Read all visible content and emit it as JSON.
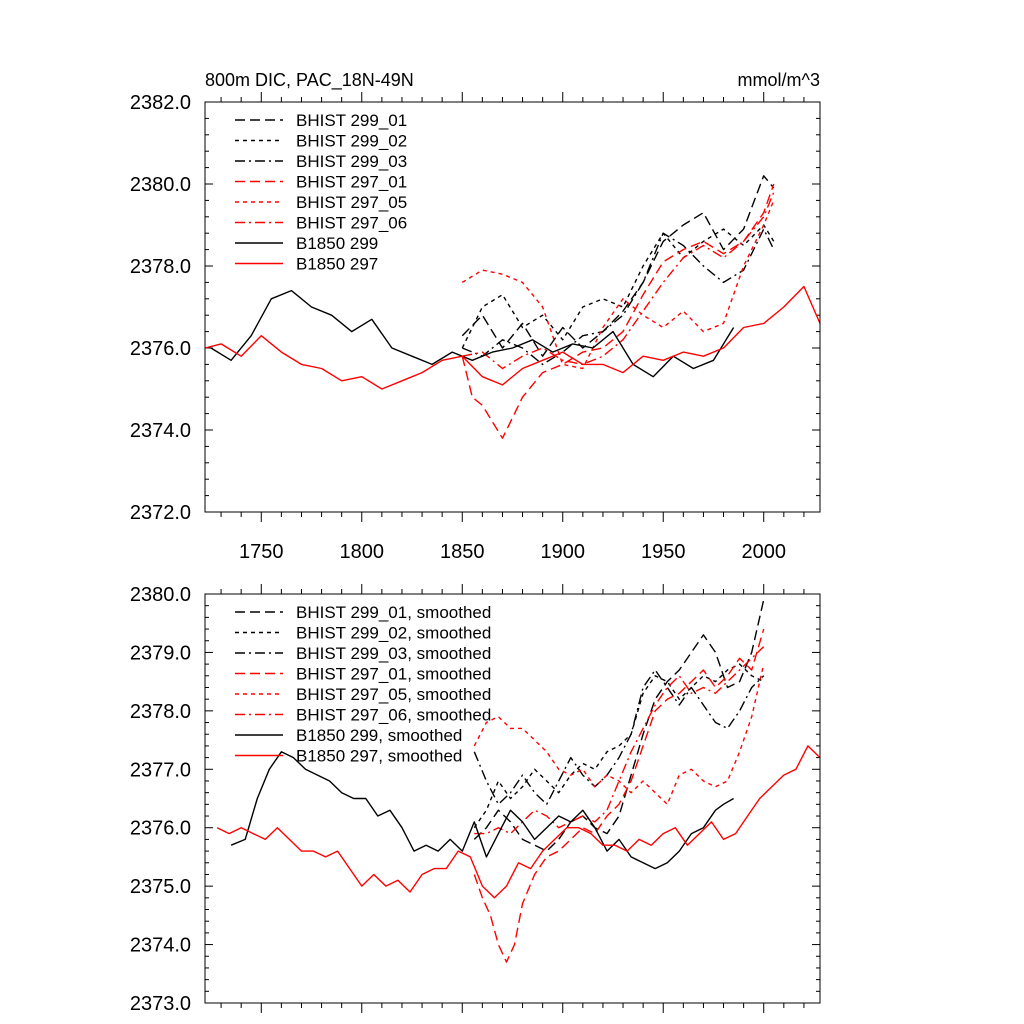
{
  "chart_data": [
    {
      "type": "line",
      "title": "800m DIC, PAC_18N-49N",
      "units": "mmol/m^3",
      "xlim": [
        1722,
        2028
      ],
      "ylim": [
        2372.0,
        2382.0
      ],
      "xticks": [
        1750,
        1800,
        1850,
        1900,
        1950,
        2000
      ],
      "yticks": [
        2372.0,
        2374.0,
        2376.0,
        2378.0,
        2380.0,
        2382.0
      ],
      "ytick_labels": [
        "2372.0",
        "2374.0",
        "2376.0",
        "2378.0",
        "2380.0",
        "2382.0"
      ],
      "xtick_labels": [
        "1750",
        "1800",
        "1850",
        "1900",
        "1950",
        "2000"
      ],
      "legend_position": "top-left",
      "series": [
        {
          "name": "BHIST 299_01",
          "color": "#000000",
          "dash": "long-dash",
          "x": [
            1850,
            1860,
            1870,
            1880,
            1890,
            1900,
            1910,
            1920,
            1930,
            1940,
            1950,
            1960,
            1970,
            1980,
            1990,
            2000,
            2005
          ],
          "y": [
            2376.3,
            2376.8,
            2376.0,
            2376.6,
            2375.8,
            2376.5,
            2376.0,
            2376.4,
            2376.9,
            2377.6,
            2378.6,
            2379.0,
            2379.3,
            2378.4,
            2378.9,
            2380.2,
            2379.9
          ]
        },
        {
          "name": "BHIST 299_02",
          "color": "#000000",
          "dash": "short-dash",
          "x": [
            1850,
            1860,
            1870,
            1880,
            1890,
            1900,
            1910,
            1920,
            1930,
            1940,
            1950,
            1960,
            1970,
            1980,
            1990,
            2000,
            2005
          ],
          "y": [
            2376.0,
            2377.0,
            2377.3,
            2376.5,
            2376.8,
            2376.2,
            2377.0,
            2377.2,
            2377.0,
            2378.0,
            2378.8,
            2378.2,
            2378.6,
            2378.9,
            2378.5,
            2379.0,
            2378.6
          ]
        },
        {
          "name": "BHIST 299_03",
          "color": "#000000",
          "dash": "dash-dot",
          "x": [
            1850,
            1860,
            1870,
            1880,
            1890,
            1900,
            1910,
            1920,
            1930,
            1940,
            1950,
            1960,
            1970,
            1980,
            1990,
            2000,
            2005
          ],
          "y": [
            2376.0,
            2375.8,
            2376.2,
            2376.0,
            2375.6,
            2375.9,
            2376.3,
            2376.4,
            2376.8,
            2377.6,
            2378.8,
            2378.5,
            2378.0,
            2377.6,
            2377.9,
            2378.9,
            2378.4
          ]
        },
        {
          "name": "BHIST 297_01",
          "color": "#ff0000",
          "dash": "long-dash",
          "x": [
            1850,
            1855,
            1860,
            1865,
            1870,
            1875,
            1880,
            1890,
            1900,
            1910,
            1920,
            1930,
            1940,
            1950,
            1960,
            1970,
            1980,
            1990,
            2000,
            2005
          ],
          "y": [
            2375.8,
            2374.8,
            2374.6,
            2374.2,
            2373.8,
            2374.3,
            2374.8,
            2375.4,
            2375.6,
            2375.9,
            2376.0,
            2376.4,
            2377.3,
            2378.1,
            2378.4,
            2378.6,
            2378.3,
            2378.6,
            2379.3,
            2380.0
          ]
        },
        {
          "name": "BHIST 297_05",
          "color": "#ff0000",
          "dash": "short-dash",
          "x": [
            1850,
            1860,
            1870,
            1880,
            1890,
            1900,
            1910,
            1920,
            1930,
            1940,
            1950,
            1960,
            1970,
            1980,
            1990,
            2000,
            2005
          ],
          "y": [
            2377.6,
            2377.9,
            2377.8,
            2377.6,
            2377.0,
            2375.6,
            2375.5,
            2376.5,
            2377.2,
            2376.8,
            2376.5,
            2376.9,
            2376.4,
            2376.6,
            2378.0,
            2379.0,
            2379.6
          ]
        },
        {
          "name": "BHIST 297_06",
          "color": "#ff0000",
          "dash": "dash-dot",
          "x": [
            1850,
            1860,
            1870,
            1880,
            1890,
            1900,
            1910,
            1920,
            1930,
            1940,
            1950,
            1960,
            1970,
            1980,
            1990,
            2000,
            2005
          ],
          "y": [
            2375.8,
            2375.9,
            2375.5,
            2375.8,
            2376.0,
            2375.7,
            2375.6,
            2375.8,
            2376.2,
            2376.9,
            2377.6,
            2378.2,
            2378.5,
            2378.2,
            2378.6,
            2379.2,
            2379.8
          ]
        },
        {
          "name": "B1850 299",
          "color": "#000000",
          "dash": "solid",
          "x": [
            1725,
            1735,
            1745,
            1755,
            1765,
            1775,
            1785,
            1795,
            1805,
            1815,
            1825,
            1835,
            1845,
            1855,
            1865,
            1875,
            1885,
            1895,
            1905,
            1915,
            1925,
            1935,
            1945,
            1955,
            1965,
            1975,
            1985
          ],
          "y": [
            2376.0,
            2375.7,
            2376.3,
            2377.2,
            2377.4,
            2377.0,
            2376.8,
            2376.4,
            2376.7,
            2376.0,
            2375.8,
            2375.6,
            2375.9,
            2375.7,
            2375.9,
            2376.0,
            2376.2,
            2375.9,
            2376.1,
            2376.0,
            2376.4,
            2375.6,
            2375.3,
            2375.8,
            2375.5,
            2375.7,
            2376.5
          ]
        },
        {
          "name": "B1850 297",
          "color": "#ff0000",
          "dash": "solid",
          "x": [
            1722,
            1730,
            1740,
            1750,
            1760,
            1770,
            1780,
            1790,
            1800,
            1810,
            1820,
            1830,
            1840,
            1850,
            1860,
            1870,
            1880,
            1890,
            1900,
            1910,
            1920,
            1930,
            1940,
            1950,
            1960,
            1970,
            1980,
            1990,
            2000,
            2010,
            2020,
            2028
          ],
          "y": [
            2376.0,
            2376.1,
            2375.8,
            2376.3,
            2375.9,
            2375.6,
            2375.5,
            2375.2,
            2375.3,
            2375.0,
            2375.2,
            2375.4,
            2375.7,
            2375.8,
            2375.3,
            2375.1,
            2375.5,
            2375.7,
            2375.9,
            2375.6,
            2375.6,
            2375.4,
            2375.8,
            2375.7,
            2375.9,
            2375.8,
            2376.0,
            2376.5,
            2376.6,
            2377.0,
            2377.5,
            2376.6
          ]
        }
      ]
    },
    {
      "type": "line",
      "title": "",
      "units": "",
      "xlim": [
        1722,
        2028
      ],
      "ylim": [
        2373.0,
        2380.0
      ],
      "xticks": [
        1750,
        1800,
        1850,
        1900,
        1950,
        2000
      ],
      "yticks": [
        2373.0,
        2374.0,
        2375.0,
        2376.0,
        2377.0,
        2378.0,
        2379.0,
        2380.0
      ],
      "ytick_labels": [
        "2373.0",
        "2374.0",
        "2375.0",
        "2376.0",
        "2377.0",
        "2378.0",
        "2379.0",
        "2380.0"
      ],
      "legend_position": "top-left",
      "series": [
        {
          "name": "BHIST 299_01, smoothed",
          "color": "#000000",
          "dash": "long-dash",
          "x": [
            1856,
            1862,
            1868,
            1874,
            1880,
            1886,
            1892,
            1898,
            1904,
            1910,
            1916,
            1922,
            1928,
            1934,
            1940,
            1946,
            1952,
            1958,
            1964,
            1970,
            1976,
            1982,
            1988,
            1994,
            2000
          ],
          "y": [
            2375.8,
            2376.0,
            2376.3,
            2376.1,
            2375.8,
            2375.7,
            2375.6,
            2375.8,
            2376.1,
            2376.2,
            2376.0,
            2375.9,
            2376.2,
            2376.9,
            2377.6,
            2378.2,
            2378.5,
            2378.7,
            2379.0,
            2379.3,
            2379.0,
            2378.4,
            2378.5,
            2379.0,
            2379.9
          ]
        },
        {
          "name": "BHIST 299_02, smoothed",
          "color": "#000000",
          "dash": "short-dash",
          "x": [
            1856,
            1862,
            1868,
            1874,
            1880,
            1886,
            1892,
            1898,
            1904,
            1910,
            1916,
            1922,
            1928,
            1934,
            1940,
            1946,
            1952,
            1958,
            1964,
            1970,
            1976,
            1982,
            1988,
            1994,
            2000
          ],
          "y": [
            2376.0,
            2376.3,
            2376.8,
            2376.5,
            2376.7,
            2377.0,
            2376.8,
            2376.6,
            2376.9,
            2377.1,
            2377.0,
            2377.3,
            2377.4,
            2377.6,
            2378.3,
            2378.6,
            2378.5,
            2378.2,
            2378.4,
            2378.6,
            2378.5,
            2378.7,
            2378.8,
            2378.6,
            2378.5
          ]
        },
        {
          "name": "BHIST 299_03, smoothed",
          "color": "#000000",
          "dash": "dash-dot",
          "x": [
            1856,
            1862,
            1868,
            1874,
            1880,
            1886,
            1892,
            1898,
            1904,
            1910,
            1916,
            1922,
            1928,
            1934,
            1940,
            1946,
            1952,
            1958,
            1964,
            1970,
            1976,
            1982,
            1988,
            1994,
            2000
          ],
          "y": [
            2377.3,
            2376.8,
            2376.4,
            2376.6,
            2376.9,
            2376.6,
            2376.4,
            2376.8,
            2377.2,
            2376.9,
            2376.7,
            2376.9,
            2377.2,
            2377.6,
            2378.4,
            2378.7,
            2378.4,
            2378.1,
            2378.4,
            2378.1,
            2377.8,
            2377.7,
            2378.0,
            2378.4,
            2378.6
          ]
        },
        {
          "name": "BHIST 297_01, smoothed",
          "color": "#ff0000",
          "dash": "long-dash",
          "x": [
            1856,
            1860,
            1864,
            1868,
            1872,
            1876,
            1880,
            1886,
            1892,
            1898,
            1904,
            1910,
            1916,
            1922,
            1928,
            1934,
            1940,
            1946,
            1952,
            1958,
            1964,
            1970,
            1976,
            1982,
            1988,
            1994,
            2000
          ],
          "y": [
            2375.2,
            2374.8,
            2374.5,
            2374.0,
            2373.7,
            2374.0,
            2374.7,
            2375.2,
            2375.5,
            2375.6,
            2375.8,
            2376.0,
            2375.9,
            2376.2,
            2376.4,
            2376.8,
            2377.4,
            2378.0,
            2378.2,
            2378.3,
            2378.5,
            2378.7,
            2378.4,
            2378.6,
            2378.9,
            2378.7,
            2379.4
          ]
        },
        {
          "name": "BHIST 297_05, smoothed",
          "color": "#ff0000",
          "dash": "short-dash",
          "x": [
            1856,
            1862,
            1868,
            1874,
            1880,
            1886,
            1892,
            1898,
            1904,
            1910,
            1916,
            1922,
            1928,
            1934,
            1940,
            1946,
            1952,
            1958,
            1964,
            1970,
            1976,
            1982,
            1988,
            1994,
            2000
          ],
          "y": [
            2377.4,
            2377.8,
            2377.9,
            2377.7,
            2377.7,
            2377.5,
            2377.3,
            2377.0,
            2376.9,
            2377.0,
            2376.7,
            2376.9,
            2376.8,
            2376.6,
            2376.8,
            2376.6,
            2376.4,
            2376.9,
            2377.0,
            2376.8,
            2376.7,
            2376.8,
            2377.3,
            2377.9,
            2378.8
          ]
        },
        {
          "name": "BHIST 297_06, smoothed",
          "color": "#ff0000",
          "dash": "dash-dot",
          "x": [
            1856,
            1862,
            1868,
            1874,
            1880,
            1886,
            1892,
            1898,
            1904,
            1910,
            1916,
            1922,
            1928,
            1934,
            1940,
            1946,
            1952,
            1958,
            1964,
            1970,
            1976,
            1982,
            1988,
            1994,
            2000
          ],
          "y": [
            2375.9,
            2375.9,
            2376.0,
            2375.9,
            2376.1,
            2376.3,
            2376.2,
            2376.0,
            2376.1,
            2376.2,
            2376.1,
            2376.3,
            2376.8,
            2377.3,
            2377.7,
            2378.1,
            2378.4,
            2378.6,
            2378.3,
            2378.4,
            2378.3,
            2378.5,
            2378.7,
            2378.9,
            2379.1
          ]
        },
        {
          "name": "B1850 299, smoothed",
          "color": "#000000",
          "dash": "solid",
          "x": [
            1735,
            1742,
            1748,
            1754,
            1760,
            1766,
            1772,
            1778,
            1784,
            1790,
            1796,
            1802,
            1808,
            1814,
            1820,
            1826,
            1832,
            1838,
            1844,
            1850,
            1856,
            1862,
            1868,
            1874,
            1880,
            1886,
            1892,
            1898,
            1904,
            1910,
            1916,
            1922,
            1928,
            1934,
            1940,
            1946,
            1952,
            1958,
            1964,
            1970,
            1976,
            1980,
            1985
          ],
          "y": [
            2375.7,
            2375.8,
            2376.5,
            2377.0,
            2377.3,
            2377.2,
            2377.0,
            2376.9,
            2376.8,
            2376.6,
            2376.5,
            2376.5,
            2376.2,
            2376.3,
            2376.0,
            2375.6,
            2375.7,
            2375.6,
            2375.8,
            2375.6,
            2376.1,
            2375.5,
            2375.9,
            2376.3,
            2376.1,
            2375.8,
            2376.0,
            2376.2,
            2376.1,
            2376.3,
            2376.0,
            2375.6,
            2375.8,
            2375.5,
            2375.4,
            2375.3,
            2375.4,
            2375.6,
            2375.9,
            2376.0,
            2376.3,
            2376.4,
            2376.5
          ]
        },
        {
          "name": "B1850 297, smoothed",
          "color": "#ff0000",
          "dash": "solid",
          "x": [
            1728,
            1734,
            1740,
            1746,
            1752,
            1758,
            1764,
            1770,
            1776,
            1782,
            1788,
            1794,
            1800,
            1806,
            1812,
            1818,
            1824,
            1830,
            1836,
            1842,
            1848,
            1854,
            1860,
            1866,
            1872,
            1878,
            1884,
            1890,
            1896,
            1902,
            1908,
            1914,
            1920,
            1926,
            1932,
            1938,
            1944,
            1950,
            1956,
            1962,
            1968,
            1974,
            1980,
            1986,
            1992,
            1998,
            2004,
            2010,
            2016,
            2022,
            2028
          ],
          "y": [
            2376.0,
            2375.9,
            2376.0,
            2375.9,
            2375.8,
            2376.0,
            2375.8,
            2375.6,
            2375.6,
            2375.5,
            2375.6,
            2375.3,
            2375.0,
            2375.2,
            2375.0,
            2375.1,
            2374.9,
            2375.2,
            2375.3,
            2375.3,
            2375.6,
            2375.5,
            2375.0,
            2374.8,
            2375.0,
            2375.4,
            2375.3,
            2375.6,
            2375.8,
            2376.0,
            2376.0,
            2375.9,
            2375.7,
            2375.7,
            2375.6,
            2375.8,
            2375.7,
            2375.9,
            2376.0,
            2375.7,
            2375.9,
            2376.1,
            2375.8,
            2375.9,
            2376.2,
            2376.5,
            2376.7,
            2376.9,
            2377.0,
            2377.4,
            2377.2
          ]
        }
      ]
    }
  ]
}
